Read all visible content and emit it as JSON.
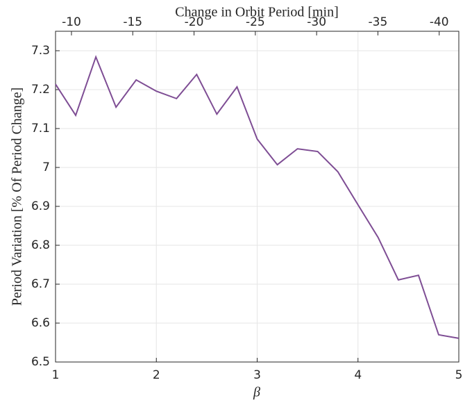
{
  "chart_data": {
    "type": "line",
    "xlabel": "β",
    "ylabel": "Period Variation [% Of Period Change]",
    "x2label": "Change in Orbit Period [min]",
    "x": [
      1,
      1.2,
      1.4,
      1.6,
      1.8,
      2,
      2.2,
      2.4,
      2.6,
      2.8,
      3,
      3.2,
      3.4,
      3.6,
      3.8,
      4,
      4.2,
      4.4,
      4.6,
      4.8,
      5
    ],
    "series": [
      {
        "color": "#7e4d94",
        "values": [
          7.214,
          7.134,
          7.284,
          7.155,
          7.225,
          7.196,
          7.177,
          7.239,
          7.137,
          7.207,
          7.073,
          7.007,
          7.048,
          7.041,
          6.989,
          6.904,
          6.82,
          6.711,
          6.723,
          6.57,
          6.561
        ]
      }
    ],
    "xlim": [
      1,
      5
    ],
    "xticks": [
      1,
      2,
      3,
      4,
      5
    ],
    "ylim": [
      6.5,
      7.35
    ],
    "yticks": [
      6.5,
      6.6,
      6.7,
      6.8,
      6.9,
      7,
      7.1,
      7.2,
      7.3
    ],
    "x2lim": [
      -8.7,
      -41.6
    ],
    "x2ticks": [
      -10,
      -15,
      -20,
      -25,
      -30,
      -35,
      -40
    ],
    "grid": true
  }
}
